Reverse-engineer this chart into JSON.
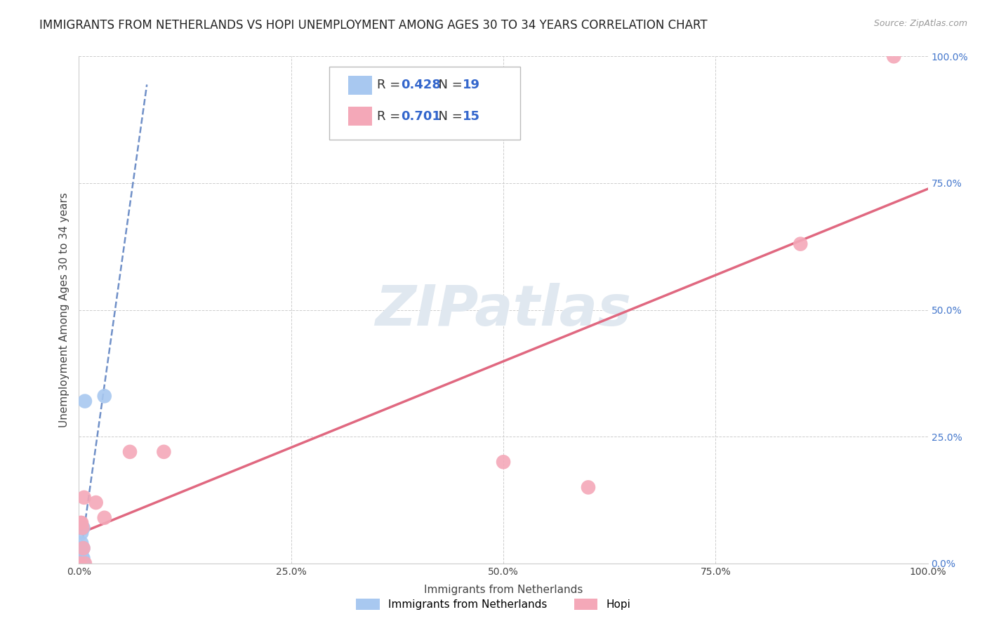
{
  "title": "IMMIGRANTS FROM NETHERLANDS VS HOPI UNEMPLOYMENT AMONG AGES 30 TO 34 YEARS CORRELATION CHART",
  "source": "Source: ZipAtlas.com",
  "xlabel": "Immigrants from Netherlands",
  "ylabel": "Unemployment Among Ages 30 to 34 years",
  "watermark": "ZIPatlas",
  "blue_label": "Immigrants from Netherlands",
  "pink_label": "Hopi",
  "blue_R": 0.428,
  "blue_N": 19,
  "pink_R": 0.701,
  "pink_N": 15,
  "blue_color": "#a8c8f0",
  "pink_color": "#f4a8b8",
  "blue_line_color": "#7090c8",
  "pink_line_color": "#e06880",
  "background_color": "#ffffff",
  "grid_color": "#c8c8c8",
  "xlim": [
    0,
    1.0
  ],
  "ylim": [
    0,
    1.0
  ],
  "xticks": [
    0.0,
    0.25,
    0.5,
    0.75,
    1.0
  ],
  "yticks": [
    0.0,
    0.25,
    0.5,
    0.75,
    1.0
  ],
  "xtick_labels": [
    "0.0%",
    "25.0%",
    "50.0%",
    "75.0%",
    "100.0%"
  ],
  "ytick_labels": [
    "0.0%",
    "25.0%",
    "50.0%",
    "75.0%",
    "100.0%"
  ],
  "blue_x": [
    0.001,
    0.001,
    0.001,
    0.002,
    0.002,
    0.002,
    0.003,
    0.003,
    0.003,
    0.003,
    0.004,
    0.004,
    0.004,
    0.005,
    0.005,
    0.005,
    0.006,
    0.007,
    0.03
  ],
  "blue_y": [
    0.0,
    0.01,
    0.02,
    0.0,
    0.01,
    0.03,
    0.0,
    0.02,
    0.04,
    0.06,
    0.0,
    0.01,
    0.03,
    0.01,
    0.03,
    0.07,
    0.0,
    0.32,
    0.33
  ],
  "pink_x": [
    0.001,
    0.002,
    0.003,
    0.004,
    0.005,
    0.006,
    0.007,
    0.02,
    0.03,
    0.06,
    0.1,
    0.5,
    0.6,
    0.85,
    0.96
  ],
  "pink_y": [
    0.0,
    0.08,
    0.08,
    0.07,
    0.03,
    0.13,
    0.0,
    0.12,
    0.09,
    0.22,
    0.22,
    0.2,
    0.15,
    0.63,
    1.0
  ],
  "title_fontsize": 12,
  "label_fontsize": 11,
  "tick_fontsize": 10,
  "legend_fontsize": 13
}
